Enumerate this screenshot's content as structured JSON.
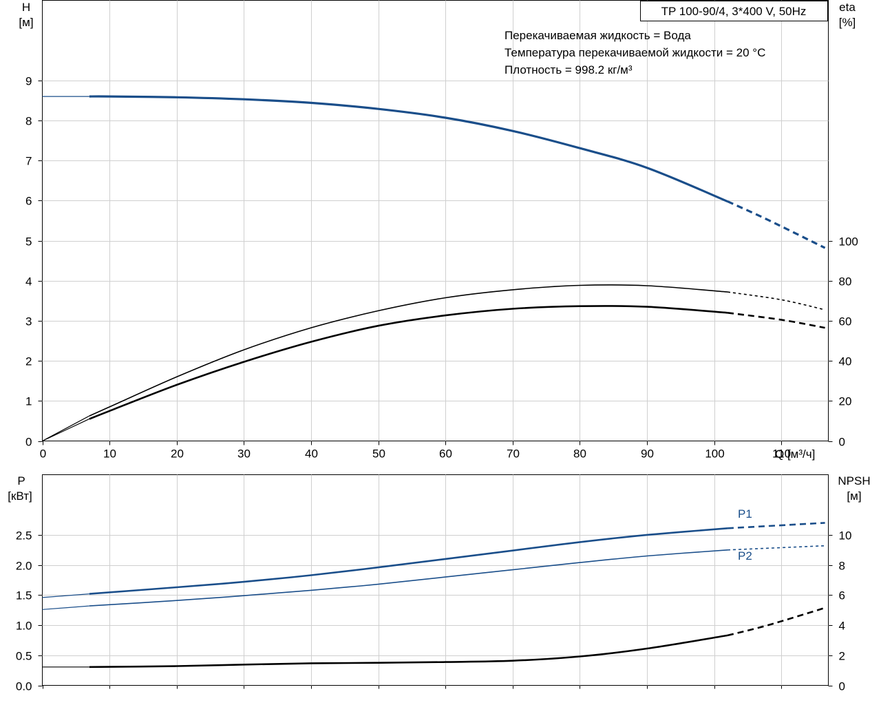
{
  "legend_box": "TP 100-90/4, 3*400 V, 50Hz",
  "notes": [
    "Перекачиваемая жидкость = Вода",
    "Температура перекачиваемой жидкости = 20 °C",
    "Плотность = 998.2 кг/м³"
  ],
  "colors": {
    "head": "#1a4e8a",
    "power": "#1a4e8a",
    "black": "#000000",
    "grid": "#cfcfcf"
  },
  "chart_data": [
    {
      "type": "line",
      "panel": "top",
      "x_axis": {
        "label": "Q [м³/ч]",
        "range": [
          0,
          117
        ],
        "ticks": [
          0,
          10,
          20,
          30,
          40,
          50,
          60,
          70,
          80,
          90,
          100,
          110
        ],
        "grid": true
      },
      "y_left": {
        "label_line1": "H",
        "label_line2": "[м]",
        "range": [
          0,
          11
        ],
        "ticks": [
          0,
          1,
          2,
          3,
          4,
          5,
          6,
          7,
          8,
          9
        ],
        "grid": true
      },
      "y_right": {
        "label_line1": "eta",
        "label_line2": "[%]",
        "range": [
          0,
          220
        ],
        "ticks": [
          0,
          20,
          40,
          60,
          80,
          100
        ]
      },
      "series": [
        {
          "id": "head",
          "axis": "left",
          "color": "#1a4e8a",
          "x": [
            0,
            7,
            10,
            20,
            30,
            40,
            50,
            60,
            70,
            80,
            90,
            102,
            108,
            116.5
          ],
          "y": [
            8.6,
            8.6,
            8.6,
            8.58,
            8.53,
            8.44,
            8.29,
            8.07,
            7.74,
            7.31,
            6.82,
            5.98,
            5.52,
            4.82
          ],
          "solid_until": 102
        },
        {
          "id": "eta_upper",
          "axis": "right",
          "color": "#000000",
          "x": [
            0,
            7,
            10,
            20,
            30,
            40,
            50,
            60,
            70,
            80,
            90,
            102,
            110,
            116.5
          ],
          "y": [
            0,
            12.5,
            17,
            32,
            45.5,
            56.5,
            65,
            71.5,
            75.5,
            77.7,
            77.5,
            74.4,
            70.5,
            65.5
          ],
          "solid_until": 102
        },
        {
          "id": "eta_lower",
          "axis": "right",
          "color": "#000000",
          "x": [
            0,
            7,
            10,
            20,
            30,
            40,
            50,
            60,
            70,
            80,
            90,
            102,
            110,
            116.5
          ],
          "y": [
            0,
            11,
            15,
            28,
            39.5,
            49.5,
            57.5,
            62.7,
            66,
            67.3,
            67,
            64,
            60.5,
            56.5
          ],
          "solid_until": 102
        }
      ]
    },
    {
      "type": "line",
      "panel": "bottom",
      "x_axis": {
        "range": [
          0,
          117
        ],
        "ticks": [
          0,
          10,
          20,
          30,
          40,
          50,
          60,
          70,
          80,
          90,
          100,
          110
        ],
        "grid": true
      },
      "y_left": {
        "label_line1": "P",
        "label_line2": "[кВт]",
        "range": [
          0,
          3.5
        ],
        "ticks": [
          0.0,
          0.5,
          1.0,
          1.5,
          2.0,
          2.5
        ],
        "tick_labels": [
          "0.0",
          "0.5",
          "1.0",
          "1.5",
          "2.0",
          "2.5"
        ],
        "grid": true
      },
      "y_right": {
        "label_line1": "NPSH",
        "label_line2": "[м]",
        "range": [
          0,
          14
        ],
        "ticks": [
          0,
          2,
          4,
          6,
          8,
          10
        ]
      },
      "series": [
        {
          "id": "p1",
          "name": "P1",
          "axis": "left",
          "color": "#1a4e8a",
          "x": [
            0,
            7,
            20,
            30,
            40,
            50,
            60,
            70,
            80,
            90,
            102,
            116.5
          ],
          "y": [
            1.46,
            1.52,
            1.63,
            1.72,
            1.83,
            1.96,
            2.1,
            2.24,
            2.38,
            2.5,
            2.61,
            2.7
          ],
          "solid_until": 102
        },
        {
          "id": "p2",
          "name": "P2",
          "axis": "left",
          "color": "#1a4e8a",
          "x": [
            0,
            7,
            20,
            30,
            40,
            50,
            60,
            70,
            80,
            90,
            102,
            116.5
          ],
          "y": [
            1.26,
            1.32,
            1.41,
            1.49,
            1.58,
            1.68,
            1.8,
            1.92,
            2.04,
            2.15,
            2.25,
            2.32
          ],
          "solid_until": 102
        },
        {
          "id": "npsh",
          "axis": "right",
          "color": "#000000",
          "x": [
            0,
            7,
            20,
            30,
            40,
            50,
            60,
            70,
            80,
            90,
            102,
            108,
            116.5
          ],
          "y": [
            1.22,
            1.22,
            1.28,
            1.38,
            1.47,
            1.5,
            1.55,
            1.64,
            1.92,
            2.45,
            3.32,
            4.0,
            5.15
          ],
          "solid_until": 102
        }
      ]
    }
  ]
}
